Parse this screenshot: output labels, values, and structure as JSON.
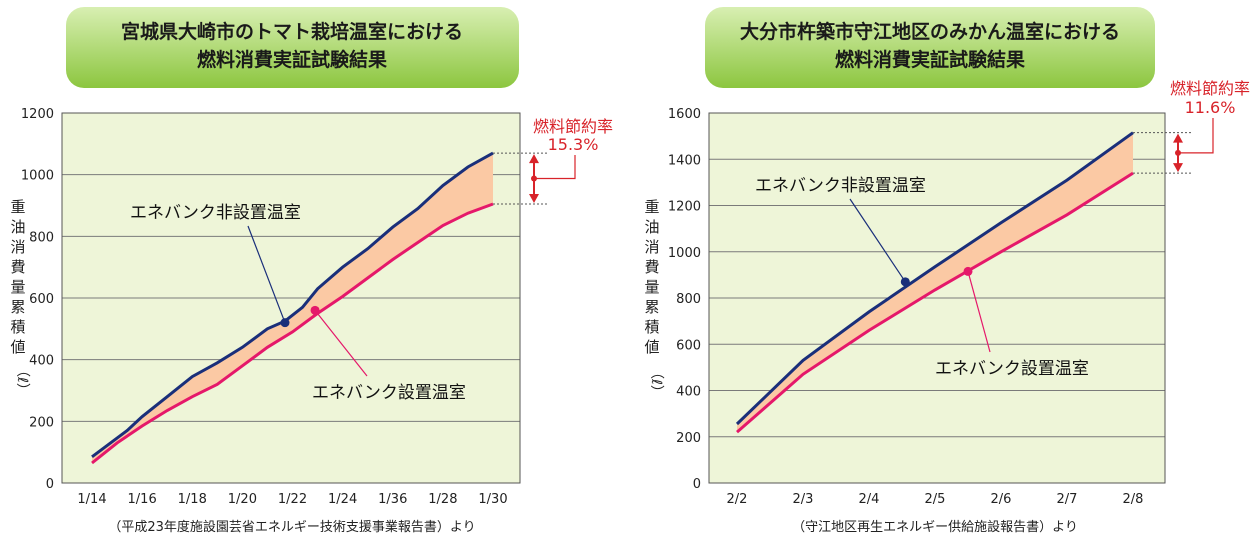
{
  "colors": {
    "plot_bg": "#eef5d8",
    "gap_fill": "#fbc9a4",
    "non_installed_line": "#1a2f7a",
    "installed_line": "#e5186a",
    "savings_text": "#d8232a",
    "title_bg_light": "#d8efb2",
    "title_bg_dark": "#8cc63f"
  },
  "chart_data": [
    {
      "type": "line",
      "title_lines": [
        "宮城県大崎市のトマト栽培温室における",
        "燃料消費実証試験結果"
      ],
      "ylabel_chars": [
        "重",
        "油",
        "消",
        "費",
        "量",
        "累",
        "積",
        "値"
      ],
      "ylabel_unit": "（ℓ）",
      "ylim": [
        0,
        1200
      ],
      "yticks": [
        0,
        200,
        400,
        600,
        800,
        1000,
        1200
      ],
      "ytick_labels": [
        "0",
        "200",
        "400",
        "600",
        "800",
        "1000",
        "1200"
      ],
      "categories": [
        "1/14",
        "1/16",
        "1/18",
        "1/20",
        "1/22",
        "1/24",
        "1/36",
        "1/28",
        "1/30"
      ],
      "grid": true,
      "series": [
        {
          "name": "エネバンク非設置温室",
          "x": [
            0,
            0.7,
            1,
            1.5,
            2,
            2.5,
            3,
            3.5,
            3.85,
            4.2,
            4.5,
            5,
            5.5,
            6,
            6.5,
            7,
            7.5,
            8
          ],
          "values": [
            85,
            170,
            215,
            280,
            345,
            390,
            440,
            500,
            525,
            570,
            630,
            700,
            760,
            830,
            890,
            965,
            1025,
            1070
          ]
        },
        {
          "name": "エネバンク設置温室",
          "x": [
            0,
            0.5,
            1,
            1.5,
            2,
            2.5,
            3,
            3.5,
            4,
            4.5,
            5,
            5.5,
            6,
            6.5,
            7,
            7.5,
            8
          ],
          "values": [
            65,
            130,
            185,
            235,
            280,
            320,
            380,
            440,
            490,
            550,
            605,
            665,
            725,
            780,
            835,
            875,
            905
          ]
        }
      ],
      "callouts": [
        {
          "text": "エネバンク非設置温室",
          "series": 0,
          "at_x": 3.85,
          "at_y": 520
        },
        {
          "text": "エネバンク設置温室",
          "series": 1,
          "at_x": 4.45,
          "at_y": 560
        }
      ],
      "savings": {
        "label": "燃料節約率",
        "value": "15.3%",
        "from": 1070,
        "to": 905
      },
      "source": "（平成23年度施設園芸省エネルギー技術支援事業報告書）より"
    },
    {
      "type": "line",
      "title_lines": [
        "大分市杵築市守江地区のみかん温室における",
        "燃料消費実証試験結果"
      ],
      "ylabel_chars": [
        "重",
        "油",
        "消",
        "費",
        "量",
        "累",
        "積",
        "値"
      ],
      "ylabel_unit": "（ℓ）",
      "ylim": [
        0,
        1600
      ],
      "yticks": [
        0,
        200,
        400,
        600,
        800,
        1000,
        1200,
        1400,
        1600
      ],
      "ytick_labels": [
        "0",
        "200",
        "400",
        "600",
        "800",
        "1000",
        "1200",
        "1400",
        "1600"
      ],
      "categories": [
        "2/2",
        "2/3",
        "2/4",
        "2/5",
        "2/6",
        "2/7",
        "2/8"
      ],
      "grid": true,
      "series": [
        {
          "name": "エネバンク非設置温室",
          "x": [
            0,
            1,
            2,
            3,
            4,
            5,
            6
          ],
          "values": [
            255,
            530,
            740,
            935,
            1125,
            1310,
            1515
          ]
        },
        {
          "name": "エネバンク設置温室",
          "x": [
            0,
            1,
            2,
            3,
            4,
            5,
            6
          ],
          "values": [
            220,
            470,
            660,
            835,
            1000,
            1160,
            1340
          ]
        }
      ],
      "callouts": [
        {
          "text": "エネバンク非設置温室",
          "series": 0,
          "at_x": 2.55,
          "at_y": 870
        },
        {
          "text": "エネバンク設置温室",
          "series": 1,
          "at_x": 3.5,
          "at_y": 915
        }
      ],
      "savings": {
        "label": "燃料節約率",
        "value": "11.6%",
        "from": 1515,
        "to": 1340
      },
      "source": "（守江地区再生エネルギー供給施設報告書）より"
    }
  ]
}
